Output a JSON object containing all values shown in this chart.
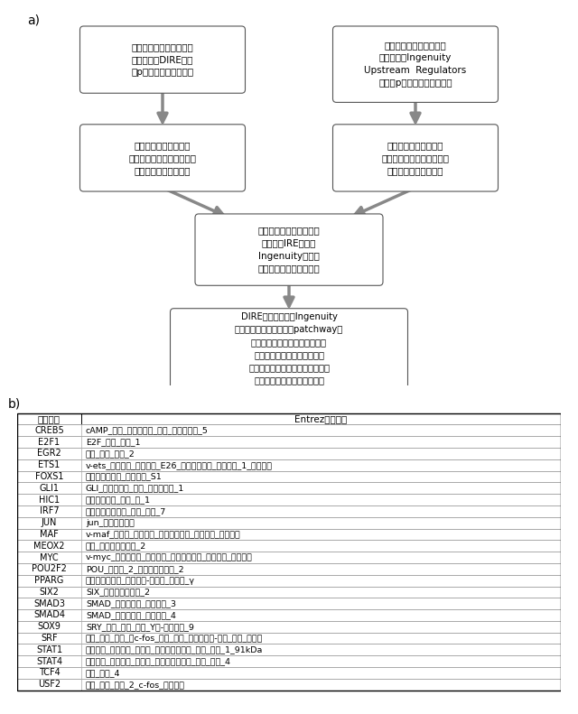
{
  "fig_width": 6.4,
  "fig_height": 7.91,
  "background_color": "#ffffff",
  "label_a": "a)",
  "label_b": "b)",
  "flowchart": {
    "box1_text": "発現に差のある遺伝子の\n各リストのDIRE解析\n（p値のみによる選別）",
    "box2_text": "発現に差のある遺伝子の\n各リストのIngenuity\nUpstream  Regulators\n解析（p値のみによる選別）",
    "box3_text": "既知の細胞局在および\nシーケンシングヒット数に\n基づく転写因子の選択",
    "box4_text": "既知の細胞局在および\nシーケンシングヒット数に\n基づく転写因子の選択",
    "box5_text": "解析対象の各パスウェイ\nについてIREまたは\nIngenuity解析で\n得られた転写因子を比較",
    "box6_text": "DIREリストおよびIngenuity\nリスト（各パスウェイ（patchway）\nに関する）の両方に存在する、\nまたは遺伝子ネットワークの\n変化の中心となる転写因子または\n転写因子のファミリーの選択"
  },
  "table": {
    "header": [
      "シンボル",
      "Entrez遺伝子名"
    ],
    "rows": [
      [
        "CREB5",
        "cAMP＿応答＿エレメント＿結合＿タンパク質＿5"
      ],
      [
        "E2F1",
        "E2F＿転写＿因子＿1"
      ],
      [
        "EGR2",
        "初期＿増殖＿応答＿2"
      ],
      [
        "ETS1",
        "v－ets＿赤芽球症＿ウイルス＿E26＿オンコジーン＿ホモログ＿1＿（トリ）"
      ],
      [
        "FOXS1",
        "フォークヘッド＿ボックス＿S1"
      ],
      [
        "GLI1",
        "GLI＿ファミリー＿亜鉛＿フィンガー＿1"
      ],
      [
        "HIC1",
        "過剰メチル化＿イン＿癌＿1"
      ],
      [
        "IRF7",
        "インターフェロン＿調節＿因子＿7"
      ],
      [
        "JUN",
        "jun＿オンコジーン"
      ],
      [
        "MAF",
        "v－maf＿筋膜原＿線維肉腫＿オンコジーン＿ホモログ＿（トリ）"
      ],
      [
        "MEOX2",
        "充填＿ホメオボックス＿2"
      ],
      [
        "MYC",
        "v－myc＿骨髄球腫症＿ウイルス＿オンコジーン＿ホモログ＿（トリ）"
      ],
      [
        "POU2F2",
        "POU＿クラス＿2＿ホメオボックス＿2"
      ],
      [
        "PPARG",
        "ルオキシソーム＿増殖因子－活性化＿受容体＿γ"
      ],
      [
        "SIX2",
        "SIX＿ホメオボックス＿2"
      ],
      [
        "SMAD3",
        "SMAD＿ファミリー＿メンバー＿3"
      ],
      [
        "SMAD4",
        "SMAD＿ファミリー＿メンバー＿4"
      ],
      [
        "SOX9",
        "SRY＿（性＿決定＿領域＿Y）－ボックス＿9"
      ],
      [
        "SRF",
        "血清＿応答＿因子＿（c－fos＿血清＿応答＿エレメント－結合＿転写＿因子）"
      ],
      [
        "STAT1",
        "シグナル＿伝達物質＿および＿アクチベーター＿オブ＿転写＿1＿91kDa"
      ],
      [
        "STAT4",
        "シグナル＿伝達物質＿および＿アクチベーター＿オブ＿転写＿4"
      ],
      [
        "TCF4",
        "転写＿因子＿4"
      ],
      [
        "USF2",
        "上流＿転写＿因子＿2＿c－fos＿相互作用"
      ]
    ]
  }
}
